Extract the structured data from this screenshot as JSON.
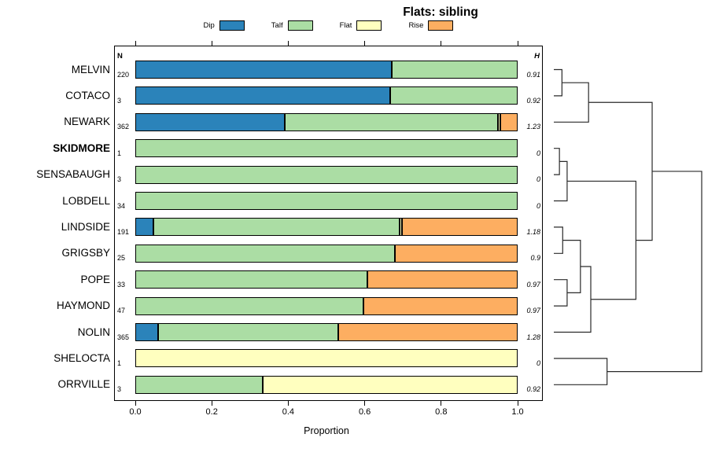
{
  "chart_data": {
    "type": "bar",
    "variant": "stacked-horizontal-with-dendrogram",
    "title": "Flats: sibling",
    "xlabel": "Proportion",
    "xlim": [
      0,
      1
    ],
    "xticks": [
      "0.0",
      "0.2",
      "0.4",
      "0.6",
      "0.8",
      "1.0"
    ],
    "grid": false,
    "legend_position": "top",
    "n_column_header": "N",
    "h_column_header": "H",
    "legend": [
      {
        "label": "Dip",
        "color": "#2b83ba"
      },
      {
        "label": "Talf",
        "color": "#abdda4"
      },
      {
        "label": "Flat",
        "color": "#ffffbf"
      },
      {
        "label": "Rise",
        "color": "#fdae61"
      }
    ],
    "series_keys": [
      "Dip",
      "Talf",
      "Flat",
      "Rise"
    ],
    "rows": [
      {
        "label": "MELVIN",
        "bold": false,
        "n": "220",
        "h": "0.91",
        "values": [
          0.67,
          0.33,
          0,
          0
        ]
      },
      {
        "label": "COTACO",
        "bold": false,
        "n": "3",
        "h": "0.92",
        "values": [
          0.667,
          0.333,
          0,
          0
        ]
      },
      {
        "label": "NEWARK",
        "bold": false,
        "n": "362",
        "h": "1.23",
        "values": [
          0.39,
          0.558,
          0.007,
          0.045
        ]
      },
      {
        "label": "SKIDMORE",
        "bold": true,
        "n": "1",
        "h": "0",
        "values": [
          0,
          1,
          0,
          0
        ]
      },
      {
        "label": "SENSABAUGH",
        "bold": false,
        "n": "3",
        "h": "0",
        "values": [
          0,
          1,
          0,
          0
        ]
      },
      {
        "label": "LOBDELL",
        "bold": false,
        "n": "34",
        "h": "0",
        "values": [
          0,
          1,
          0,
          0
        ]
      },
      {
        "label": "LINDSIDE",
        "bold": false,
        "n": "191",
        "h": "1.18",
        "values": [
          0.047,
          0.645,
          0.006,
          0.302
        ]
      },
      {
        "label": "GRIGSBY",
        "bold": false,
        "n": "25",
        "h": "0.9",
        "values": [
          0,
          0.68,
          0,
          0.32
        ]
      },
      {
        "label": "POPE",
        "bold": false,
        "n": "33",
        "h": "0.97",
        "values": [
          0,
          0.606,
          0,
          0.394
        ]
      },
      {
        "label": "HAYMOND",
        "bold": false,
        "n": "47",
        "h": "0.97",
        "values": [
          0,
          0.596,
          0,
          0.404
        ]
      },
      {
        "label": "NOLIN",
        "bold": false,
        "n": "365",
        "h": "1.28",
        "values": [
          0.06,
          0.47,
          0,
          0.47
        ]
      },
      {
        "label": "SHELOCTA",
        "bold": false,
        "n": "1",
        "h": "0",
        "values": [
          0,
          0,
          1,
          0
        ]
      },
      {
        "label": "ORRVILLE",
        "bold": false,
        "n": "3",
        "h": "0.92",
        "values": [
          0,
          0.333,
          0.667,
          0
        ]
      }
    ],
    "dendrogram": {
      "h": 1.0,
      "children": [
        {
          "h": 0.665,
          "children": [
            {
              "h": 0.235,
              "children": [
                {
                  "h": 0.055,
                  "children": [
                    "MELVIN",
                    "COTACO"
                  ]
                },
                "NEWARK"
              ]
            },
            {
              "h": 0.555,
              "children": [
                {
                  "h": 0.09,
                  "children": [
                    {
                      "h": 0.038,
                      "children": [
                        "SKIDMORE",
                        "SENSABAUGH"
                      ]
                    },
                    "LOBDELL"
                  ]
                },
                {
                  "h": 0.25,
                  "children": [
                    {
                      "h": 0.18,
                      "children": [
                        {
                          "h": 0.06,
                          "children": [
                            "LINDSIDE",
                            "GRIGSBY"
                          ]
                        },
                        {
                          "h": 0.09,
                          "children": [
                            "POPE",
                            "HAYMOND"
                          ]
                        }
                      ]
                    },
                    "NOLIN"
                  ]
                }
              ]
            }
          ]
        },
        {
          "h": 0.36,
          "children": [
            "SHELOCTA",
            "ORRVILLE"
          ]
        }
      ]
    }
  }
}
